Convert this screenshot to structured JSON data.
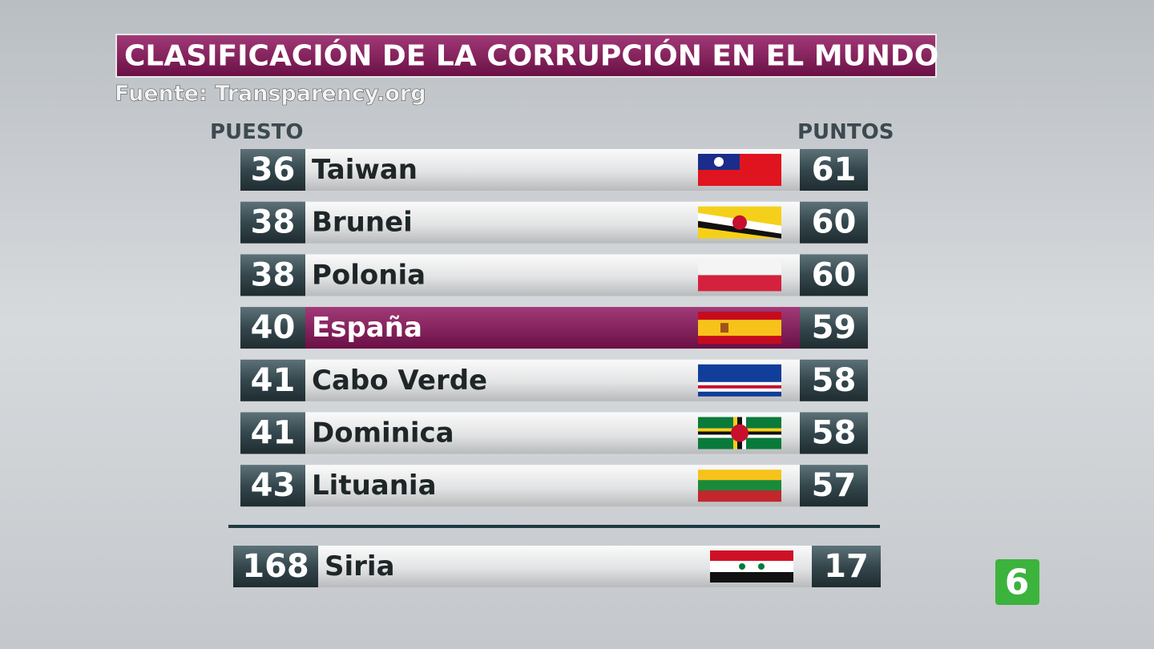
{
  "header": {
    "title": "CLASIFICACIÓN DE LA CORRUPCIÓN EN EL MUNDO",
    "source": "Fuente: Transparency.org"
  },
  "columns": {
    "rank": "PUESTO",
    "points": "PUNTOS"
  },
  "rows": [
    {
      "rank": 36,
      "country": "Taiwan",
      "points": 61
    },
    {
      "rank": 38,
      "country": "Brunei",
      "points": 60
    },
    {
      "rank": 38,
      "country": "Polonia",
      "points": 60
    },
    {
      "rank": 40,
      "country": "España",
      "points": 59,
      "highlight": true
    },
    {
      "rank": 41,
      "country": "Cabo Verde",
      "points": 58
    },
    {
      "rank": 41,
      "country": "Dominica",
      "points": 58
    },
    {
      "rank": 43,
      "country": "Lituania",
      "points": 57
    }
  ],
  "footer_row": {
    "rank": 168,
    "country": "Siria",
    "points": 17
  },
  "logo": "6"
}
